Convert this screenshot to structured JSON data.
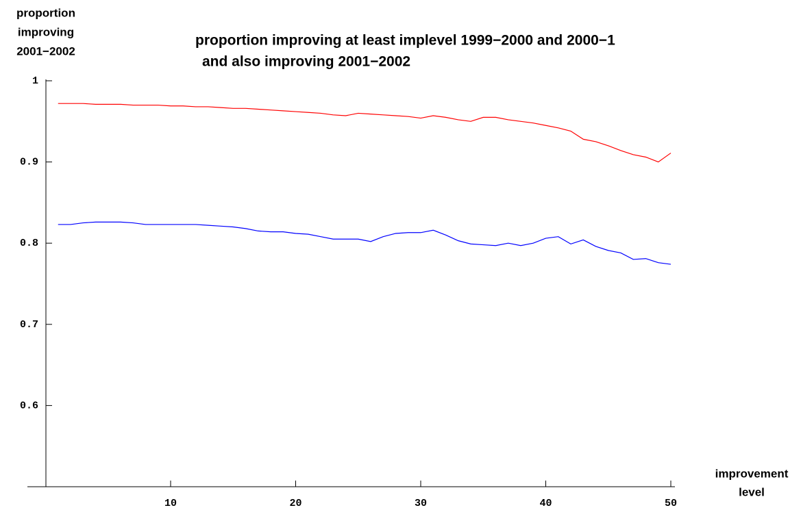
{
  "chart_data": {
    "type": "line",
    "title": [
      "proportion improving at least implevel 1999−2000 and 2000−1",
      "and also improving 2001−2002"
    ],
    "ylabel": [
      "proportion",
      "improving",
      "2001−2002"
    ],
    "xlabel": [
      "improvement",
      "level"
    ],
    "x": [
      1,
      2,
      3,
      4,
      5,
      6,
      7,
      8,
      9,
      10,
      11,
      12,
      13,
      14,
      15,
      16,
      17,
      18,
      19,
      20,
      21,
      22,
      23,
      24,
      25,
      26,
      27,
      28,
      29,
      30,
      31,
      32,
      33,
      34,
      35,
      36,
      37,
      38,
      39,
      40,
      41,
      42,
      43,
      44,
      45,
      46,
      47,
      48,
      49,
      50
    ],
    "series": [
      {
        "color": "#ff0000",
        "values": [
          0.972,
          0.972,
          0.972,
          0.971,
          0.971,
          0.971,
          0.97,
          0.97,
          0.97,
          0.969,
          0.969,
          0.968,
          0.968,
          0.967,
          0.966,
          0.966,
          0.965,
          0.964,
          0.963,
          0.962,
          0.961,
          0.96,
          0.958,
          0.957,
          0.96,
          0.959,
          0.958,
          0.957,
          0.956,
          0.954,
          0.957,
          0.955,
          0.952,
          0.95,
          0.955,
          0.955,
          0.952,
          0.95,
          0.948,
          0.945,
          0.942,
          0.938,
          0.928,
          0.925,
          0.92,
          0.914,
          0.909,
          0.906,
          0.9,
          0.911
        ]
      },
      {
        "color": "#0000ff",
        "values": [
          0.823,
          0.823,
          0.825,
          0.826,
          0.826,
          0.826,
          0.825,
          0.823,
          0.823,
          0.823,
          0.823,
          0.823,
          0.822,
          0.821,
          0.82,
          0.818,
          0.815,
          0.814,
          0.814,
          0.812,
          0.811,
          0.808,
          0.805,
          0.805,
          0.805,
          0.802,
          0.808,
          0.812,
          0.813,
          0.813,
          0.816,
          0.81,
          0.803,
          0.799,
          0.798,
          0.797,
          0.8,
          0.797,
          0.8,
          0.806,
          0.808,
          0.799,
          0.804,
          0.796,
          0.791,
          0.788,
          0.78,
          0.781,
          0.776,
          0.774
        ]
      }
    ],
    "xlim": [
      0,
      50
    ],
    "xticks": [
      10,
      20,
      30,
      40,
      50
    ],
    "ylim": [
      0.5,
      1
    ],
    "yticks": [
      0.6,
      0.7,
      0.8,
      0.9,
      1
    ]
  }
}
